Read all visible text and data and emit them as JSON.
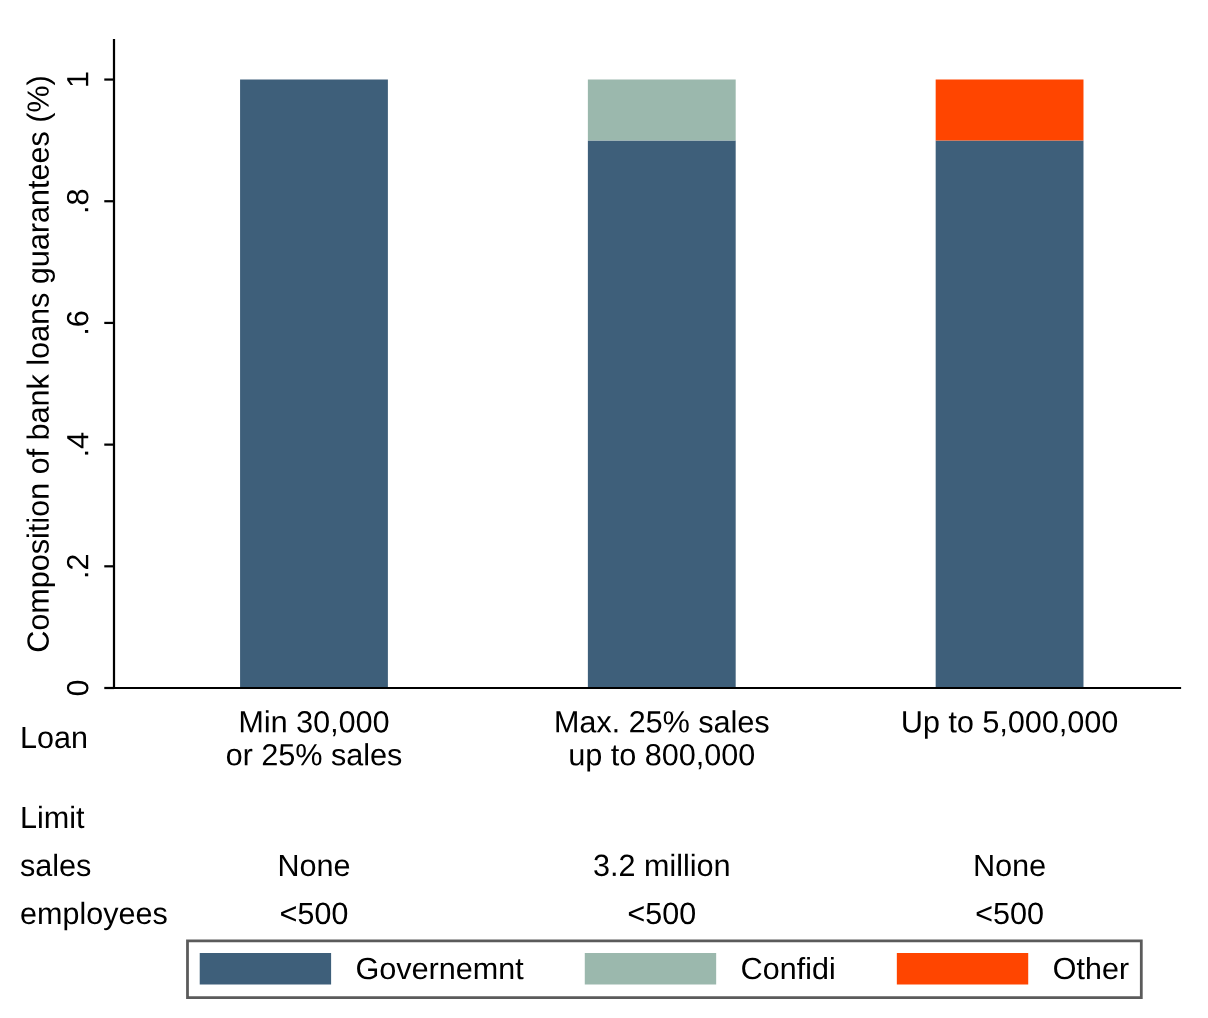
{
  "chart_data": {
    "type": "bar",
    "stacked": true,
    "ylabel": "Composition of bank loans guarantees (%)",
    "categories": [
      "Min 30,000\nor 25% sales",
      "Max. 25% sales\nup to 800,000",
      "Up to 5,000,000"
    ],
    "series": [
      {
        "name": "Governemnt",
        "color": "#3e5f7a",
        "values": [
          1,
          0.9,
          0.9
        ]
      },
      {
        "name": "Confidi",
        "color": "#9bb8ad",
        "values": [
          0,
          0.1,
          0
        ]
      },
      {
        "name": "Other",
        "color": "#ff4500",
        "values": [
          0,
          0,
          0.1
        ]
      }
    ],
    "ylim": [
      0,
      1.065
    ],
    "yticks": [
      0,
      {
        "value": 0.2,
        "label": ".2"
      },
      {
        "value": 0.4,
        "label": ".4"
      },
      {
        "value": 0.6,
        "label": ".6"
      },
      {
        "value": 0.8,
        "label": ".8"
      },
      1
    ],
    "legend": "bottom",
    "grid": false,
    "annotations": [
      "Loan",
      "Limit",
      "sales",
      "employees",
      "None",
      "3.2 million",
      "None",
      "<500",
      "<500",
      "<500"
    ]
  }
}
